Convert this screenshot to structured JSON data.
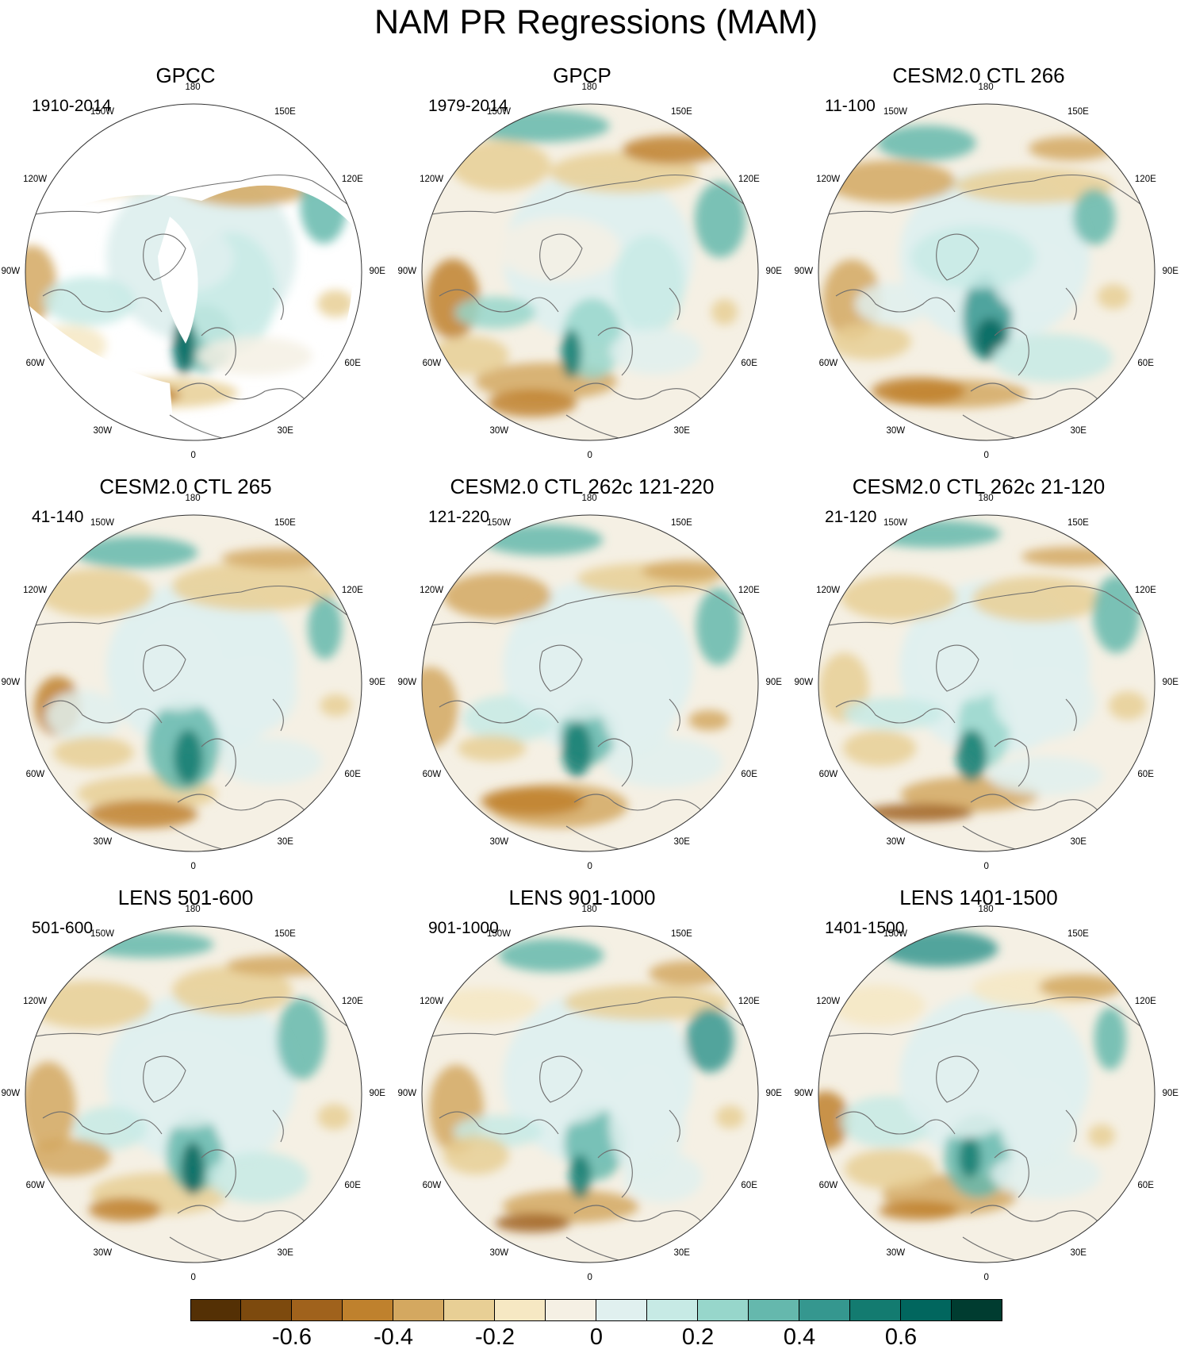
{
  "title": "NAM PR Regressions (MAM)",
  "panels": [
    {
      "title": "GPCC",
      "period": "1910-2014",
      "masked": true
    },
    {
      "title": "GPCP",
      "period": "1979-2014",
      "masked": false
    },
    {
      "title": "CESM2.0 CTL 266",
      "period": "11-100",
      "masked": false
    },
    {
      "title": "CESM2.0 CTL 265",
      "period": "41-140",
      "masked": false
    },
    {
      "title": "CESM2.0 CTL 262c 121-220",
      "period": "121-220",
      "masked": false
    },
    {
      "title": "CESM2.0 CTL 262c 21-120",
      "period": "21-120",
      "masked": false
    },
    {
      "title": "LENS 501-600",
      "period": "501-600",
      "masked": false
    },
    {
      "title": "LENS 901-1000",
      "period": "901-1000",
      "masked": false
    },
    {
      "title": "LENS 1401-1500",
      "period": "1401-1500",
      "masked": false
    }
  ],
  "longitude_labels": [
    "180",
    "150E",
    "120E",
    "90E",
    "60E",
    "30E",
    "0",
    "30W",
    "60W",
    "90W",
    "120W",
    "150W"
  ],
  "colorbar": {
    "colors": [
      "#543005",
      "#7d4a0e",
      "#a0621c",
      "#bf812d",
      "#d4a860",
      "#e8cf95",
      "#f6e8c3",
      "#f5f0e4",
      "#e0f0ef",
      "#c7eae5",
      "#97d6cb",
      "#65b8ad",
      "#35978f",
      "#137b70",
      "#01665e",
      "#003c30"
    ],
    "tick_labels": [
      "-0.6",
      "-0.4",
      "-0.2",
      "0",
      "0.2",
      "0.4",
      "0.6"
    ],
    "tick_values": [
      -0.6,
      -0.4,
      -0.2,
      0,
      0.2,
      0.4,
      0.6
    ]
  }
}
